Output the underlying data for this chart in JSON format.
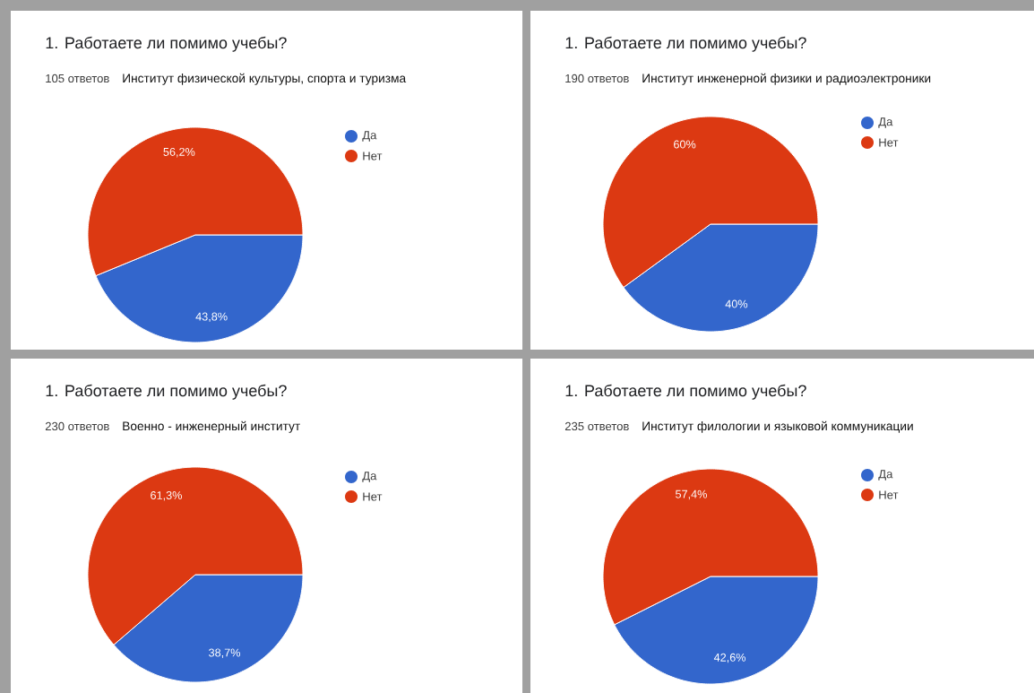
{
  "chart_data": [
    {
      "type": "pie",
      "title": "1. Работаете ли помимо учебы?",
      "subtitle": "105 ответов",
      "annotations": [
        "Институт физической культуры, спорта и туризма"
      ],
      "categories": [
        "Да",
        "Нет"
      ],
      "values": [
        43.8,
        56.2
      ],
      "colors": [
        "#3366cc",
        "#dc3912"
      ],
      "value_labels": [
        "43,8%",
        "56,2%"
      ],
      "legend": "right"
    },
    {
      "type": "pie",
      "title": "1. Работаете ли помимо учебы?",
      "subtitle": "190 ответов",
      "annotations": [
        "Институт инженерной физики и радиоэлектроники"
      ],
      "categories": [
        "Да",
        "Нет"
      ],
      "values": [
        40,
        60
      ],
      "colors": [
        "#3366cc",
        "#dc3912"
      ],
      "value_labels": [
        "40%",
        "60%"
      ],
      "legend": "right"
    },
    {
      "type": "pie",
      "title": "1. Работаете ли помимо учебы?",
      "subtitle": "230 ответов",
      "annotations": [
        "Военно - инженерный институт"
      ],
      "categories": [
        "Да",
        "Нет"
      ],
      "values": [
        38.7,
        61.3
      ],
      "colors": [
        "#3366cc",
        "#dc3912"
      ],
      "value_labels": [
        "38,7%",
        "61,3%"
      ],
      "legend": "right"
    },
    {
      "type": "pie",
      "title": "1. Работаете ли помимо учебы?",
      "subtitle": "235 ответов",
      "annotations": [
        "Институт филологии и языковой коммуникации"
      ],
      "categories": [
        "Да",
        "Нет"
      ],
      "values": [
        42.6,
        57.4
      ],
      "colors": [
        "#3366cc",
        "#dc3912"
      ],
      "value_labels": [
        "42,6%",
        "57,4%"
      ],
      "legend": "right"
    }
  ]
}
